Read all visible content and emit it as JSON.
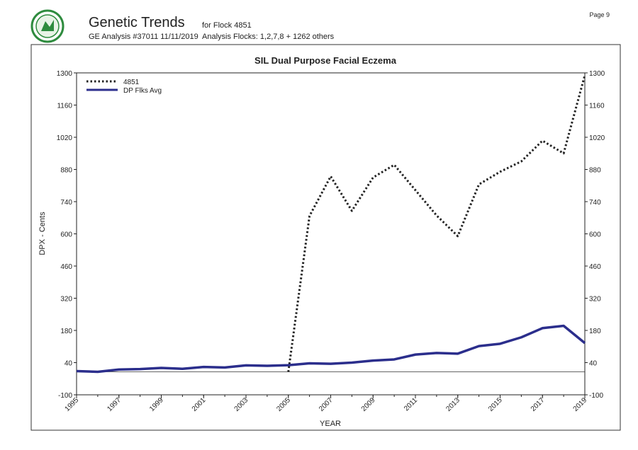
{
  "header": {
    "title": "Genetic Trends",
    "flock": "for Flock 4851",
    "analysis": "GE Analysis #37011 11/11/2019",
    "flocks": "Analysis Flocks: 1,2,7,8 + 1262 others",
    "page": "Page 9"
  },
  "chart_data": {
    "type": "line",
    "title": "SIL Dual Purpose Facial Eczema",
    "x_label": "YEAR",
    "y_label": "DPX - Cents",
    "x": [
      1995,
      1996,
      1997,
      1998,
      1999,
      2000,
      2001,
      2002,
      2003,
      2004,
      2005,
      2006,
      2007,
      2008,
      2009,
      2010,
      2011,
      2012,
      2013,
      2014,
      2015,
      2016,
      2017,
      2018,
      2019
    ],
    "series": [
      {
        "name": "4851",
        "color": "#222222",
        "style": "dotted",
        "values": [
          null,
          null,
          null,
          null,
          null,
          null,
          null,
          null,
          null,
          null,
          0,
          678,
          850,
          700,
          845,
          900,
          790,
          680,
          590,
          815,
          870,
          915,
          1005,
          950,
          1290
        ]
      },
      {
        "name": "DP Flks Avg",
        "color": "#2b2e8c",
        "style": "solid",
        "values": [
          3,
          0,
          10,
          12,
          17,
          13,
          21,
          19,
          28,
          26,
          29,
          37,
          35,
          40,
          49,
          54,
          75,
          82,
          79,
          112,
          122,
          150,
          190,
          200,
          125
        ]
      }
    ],
    "xlim": [
      1995,
      2019
    ],
    "xticks": [
      1995,
      1997,
      1999,
      2001,
      2003,
      2005,
      2007,
      2009,
      2011,
      2013,
      2015,
      2017,
      2019
    ],
    "ylim": [
      -100,
      1300
    ],
    "yticks": [
      -100,
      40,
      180,
      320,
      460,
      600,
      740,
      880,
      1020,
      1160,
      1300
    ],
    "legend": "upper left"
  }
}
